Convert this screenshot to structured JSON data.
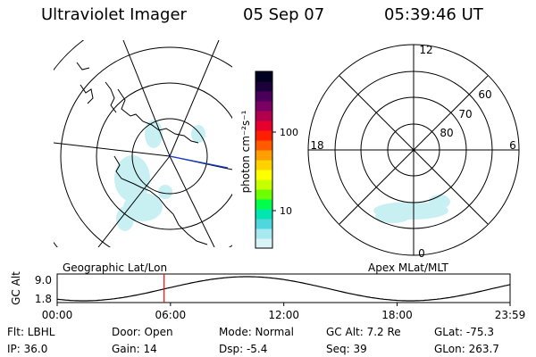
{
  "header": {
    "title": "Ultraviolet Imager",
    "date": "05 Sep 07",
    "time": "05:39:46 UT"
  },
  "left_panel": {
    "label": "Geographic Lat/Lon"
  },
  "right_panel": {
    "label": "Apex MLat/MLT",
    "mlt_labels": {
      "top": "12",
      "left": "18",
      "right": "6",
      "bottom": "0"
    },
    "lat_labels": [
      "60",
      "70",
      "80"
    ]
  },
  "colorbar": {
    "unit": "photon cm⁻²s⁻¹",
    "ticks": [
      {
        "label": "100",
        "value": 100
      },
      {
        "label": "10",
        "value": 10
      }
    ],
    "colors": [
      "#d9f3f6",
      "#a6e9f0",
      "#4fd6df",
      "#00e6b0",
      "#00ff4a",
      "#6cff00",
      "#c8ff00",
      "#ffff00",
      "#ffd200",
      "#ff9e00",
      "#ff5a00",
      "#ff1e00",
      "#e6002e",
      "#b0004e",
      "#7a0064",
      "#4a005a",
      "#1c003a",
      "#000020"
    ]
  },
  "altitude_strip": {
    "axis_label": "GC Alt",
    "yticks": [
      "9.0",
      "1.8"
    ],
    "xticks": [
      "00:00",
      "06:00",
      "12:00",
      "18:00",
      "23:59"
    ],
    "current_time_hours": 5.663,
    "curve_color": "#000000",
    "marker_color": "#ff0000"
  },
  "info": {
    "filter": "Flt: LBHL",
    "ip": "IP: 36.0",
    "door": "Door: Open",
    "gain": "Gain: 14",
    "mode": "Mode: Normal",
    "dsp": "Dsp:   -5.4",
    "gc_alt": "GC Alt: 7.2 Re",
    "seq": "Seq: 39",
    "glat": "GLat: -75.3",
    "glon": "GLon: 263.7"
  }
}
